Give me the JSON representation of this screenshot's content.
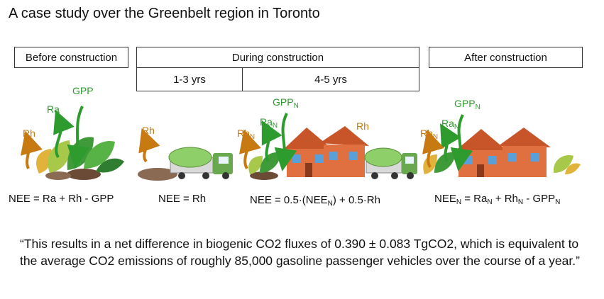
{
  "title": "A case study over the Greenbelt region in Toronto",
  "phases": {
    "before": "Before construction",
    "during": "During construction",
    "during_sub1": "1-3 yrs",
    "during_sub2": "4-5 yrs",
    "after": "After construction"
  },
  "labels": {
    "gpp": "GPP",
    "ra": "Ra",
    "rh": "Rh",
    "n": "N"
  },
  "equations": {
    "before": "NEE = Ra + Rh - GPP",
    "during1": "NEE = Rh",
    "during2_a": "NEE = 0.5·(NEE",
    "during2_b": ") + 0.5·Rh",
    "after_a": "NEE",
    "after_b": " = Ra",
    "after_c": " + Rh",
    "after_d": " - GPP"
  },
  "quote": "“This results in a net difference in biogenic CO2 fluxes of 0.390 ± 0.083 TgCO2, which is equivalent to the average CO2 emissions of roughly 85,000 gasoline passenger vehicles over the course of a year.”",
  "colors": {
    "gpp_arrow": "#2e9b2e",
    "ra_arrow": "#2e9b2e",
    "rh_arrow": "#c87a12",
    "house": "#c8552a",
    "truck": "#6aa84f"
  }
}
